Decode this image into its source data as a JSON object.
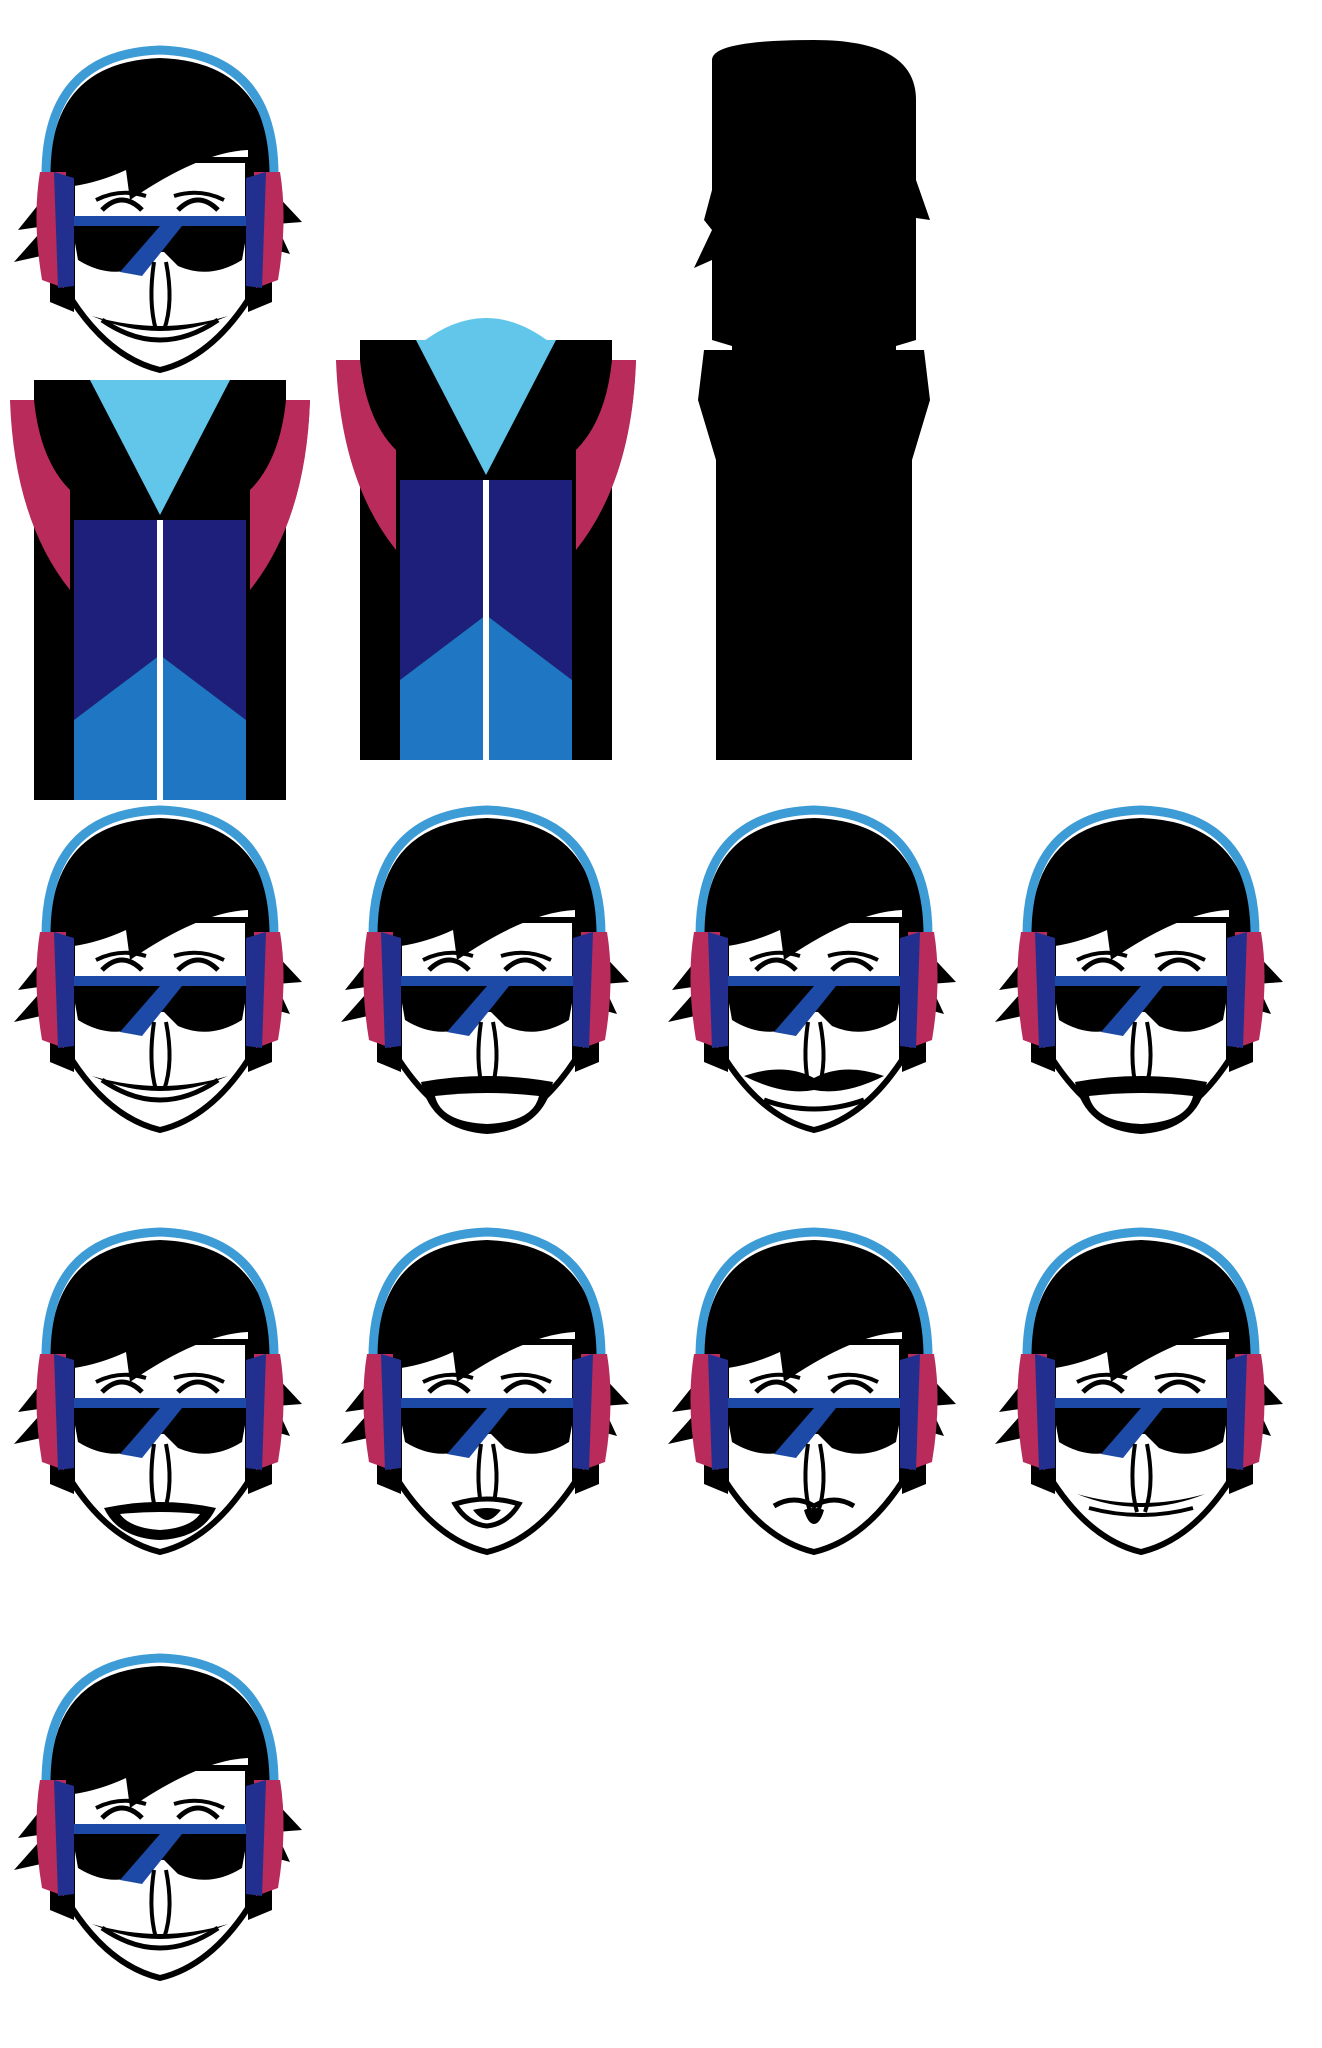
{
  "sheet": {
    "background": "#ffffff",
    "palette": {
      "black": "#000000",
      "white": "#ffffff",
      "headband": "#3d9bd6",
      "earcup_pink": "#b82b5a",
      "earcup_navy": "#232f8f",
      "glasses_stripe": "#1d4aa6",
      "torso_navy": "#1e1f7a",
      "torso_cyan": "#62c6ea",
      "torso_blue": "#1f77c4",
      "torso_blue_alt": "#2a86d2",
      "shoulder_pink": "#b82b5a"
    },
    "figures": {
      "full_body": [
        {
          "id": "assembled-character",
          "parts": [
            "head",
            "torso"
          ]
        },
        {
          "id": "torso-only",
          "parts": [
            "torso"
          ]
        },
        {
          "id": "silhouette",
          "parts": [
            "silhouette"
          ]
        }
      ],
      "expressions": [
        {
          "id": "head-neutral",
          "mouth": "wide-smile"
        },
        {
          "id": "head-open-laugh",
          "mouth": "open-laugh"
        },
        {
          "id": "head-grin",
          "mouth": "smirk-smile"
        },
        {
          "id": "head-open-laugh-2",
          "mouth": "open-laugh"
        },
        {
          "id": "head-open-small",
          "mouth": "open-small"
        },
        {
          "id": "head-pursed",
          "mouth": "pursed"
        },
        {
          "id": "head-pouting",
          "mouth": "pout"
        },
        {
          "id": "head-mustache-smirk",
          "mouth": "flat-smile"
        },
        {
          "id": "head-default",
          "mouth": "wide-smile"
        }
      ]
    }
  }
}
